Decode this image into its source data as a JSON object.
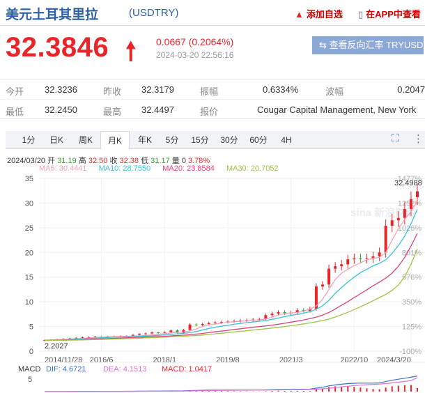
{
  "header": {
    "title": "美元土耳其里拉",
    "code": "(USDTRY)",
    "add_watch": "添加自选",
    "app_view": "在APP中查看"
  },
  "quote": {
    "price": "32.3846",
    "change": "0.0667 (0.2064%)",
    "time": "2024-03-20 22:56:16",
    "reverse_button": "查看反向汇率 TRYUSD"
  },
  "stats": {
    "open_label": "今开",
    "open": "32.3236",
    "prev_close_label": "昨收",
    "prev_close": "32.3179",
    "amplitude_label": "振幅",
    "amplitude": "0.6334%",
    "volatility_label": "波幅",
    "volatility": "0.2047",
    "low_label": "最低",
    "low": "32.2450",
    "high_label": "最高",
    "high": "32.4497",
    "quoter_label": "报价",
    "quoter": "Cougar Capital Management, New York"
  },
  "tabs": [
    "1分",
    "日K",
    "周K",
    "月K",
    "年K",
    "5分",
    "15分",
    "30分",
    "60分",
    "4H"
  ],
  "active_tab": "月K",
  "ohlc": {
    "date": "2024/03/20",
    "open_label": "开",
    "open": "31.19",
    "high_label": "高",
    "high": "32.50",
    "close_label": "收",
    "close": "32.38",
    "low_label": "低",
    "low": "31.17",
    "vol_label": "量",
    "vol": "0",
    "pct": "3.78%"
  },
  "ma": {
    "ma5": "MA5: 30.4441",
    "ma10": "MA10: 28.7550",
    "ma20": "MA20: 23.8584",
    "ma30": "MA30: 20.7052"
  },
  "colors": {
    "up": "#e8262a",
    "down": "#2ca02c",
    "ma5": "#f4a3b4",
    "ma10": "#3bbfdc",
    "ma20": "#e0417a",
    "ma30": "#9fc346",
    "dif": "#3b6fd0",
    "dea": "#e06fd6",
    "macd": "#e8262a",
    "brand_blue": "#2b5fa8"
  },
  "icons": {
    "fire": "fire-icon",
    "phone": "phone-icon",
    "arrow_up": "arrow-up-icon",
    "swap": "swap-icon",
    "fullscreen": "fullscreen-icon",
    "more": "more-vertical-icon"
  },
  "watermark": "sina 新浪财经",
  "macd": {
    "title": "MACD",
    "dif": "DIF: 4.6721",
    "dea": "DEA: 4.1513",
    "macd": "MACD: 1.0417",
    "y_tick": "5"
  },
  "chart_data": {
    "type": "candlestick",
    "period": "monthly",
    "y_ticks": [
      0,
      5,
      10,
      15,
      20,
      25,
      30,
      35
    ],
    "ylim": [
      0,
      35
    ],
    "pct_ticks": [
      "1477%",
      "1252%",
      "1026%",
      "801%",
      "576%",
      "350%",
      "125%",
      "-100%"
    ],
    "x_tick_labels": [
      "2014/11/28",
      "2016/6",
      "2018/1",
      "2019/8",
      "2021/3",
      "2022/10",
      "2024/3/20"
    ],
    "max_label": "32.4988",
    "min_label": "2.2027",
    "series": [
      {
        "name": "MA5",
        "values": [
          2.25,
          2.28,
          2.33,
          2.38,
          2.45,
          2.52,
          2.6,
          2.68,
          2.77,
          2.85,
          2.92,
          2.95,
          2.98,
          3.0,
          3.05,
          3.12,
          3.2,
          3.3,
          3.42,
          3.55,
          3.68,
          3.78,
          3.9,
          4.1,
          4.5,
          5.0,
          5.3,
          5.5,
          5.7,
          5.85,
          5.95,
          6.05,
          6.15,
          6.25,
          6.35,
          6.55,
          6.9,
          7.3,
          7.6,
          7.75,
          7.85,
          8.1,
          8.5,
          9.2,
          10.5,
          12.5,
          14.5,
          15.8,
          16.6,
          17.3,
          17.9,
          18.5,
          18.8,
          19.0,
          20.0,
          22.5,
          24.8,
          26.7,
          28.3,
          30.44
        ]
      },
      {
        "name": "MA10",
        "values": [
          2.22,
          2.24,
          2.27,
          2.3,
          2.35,
          2.41,
          2.48,
          2.55,
          2.62,
          2.7,
          2.78,
          2.84,
          2.88,
          2.92,
          2.96,
          3.0,
          3.06,
          3.12,
          3.2,
          3.3,
          3.42,
          3.52,
          3.62,
          3.76,
          4.0,
          4.3,
          4.6,
          4.85,
          5.05,
          5.25,
          5.45,
          5.62,
          5.78,
          5.92,
          6.05,
          6.22,
          6.45,
          6.72,
          7.0,
          7.25,
          7.45,
          7.7,
          8.0,
          8.5,
          9.2,
          10.3,
          11.7,
          12.9,
          14.0,
          15.0,
          15.9,
          16.6,
          17.3,
          17.8,
          18.5,
          19.8,
          21.4,
          23.3,
          25.8,
          28.76
        ]
      },
      {
        "name": "MA20",
        "values": [
          2.2,
          2.21,
          2.23,
          2.25,
          2.28,
          2.32,
          2.36,
          2.4,
          2.45,
          2.5,
          2.56,
          2.61,
          2.66,
          2.71,
          2.76,
          2.81,
          2.86,
          2.91,
          2.97,
          3.04,
          3.11,
          3.18,
          3.25,
          3.34,
          3.46,
          3.6,
          3.76,
          3.92,
          4.08,
          4.24,
          4.4,
          4.55,
          4.7,
          4.84,
          4.98,
          5.12,
          5.28,
          5.46,
          5.66,
          5.88,
          6.1,
          6.34,
          6.6,
          6.9,
          7.3,
          7.85,
          8.55,
          9.3,
          10.05,
          10.85,
          11.65,
          12.45,
          13.25,
          14.0,
          14.8,
          15.8,
          17.2,
          19.0,
          21.3,
          23.86
        ]
      },
      {
        "name": "MA30",
        "values": [
          2.2,
          2.2,
          2.21,
          2.22,
          2.24,
          2.26,
          2.29,
          2.32,
          2.35,
          2.39,
          2.43,
          2.47,
          2.51,
          2.55,
          2.6,
          2.64,
          2.69,
          2.74,
          2.79,
          2.85,
          2.91,
          2.97,
          3.03,
          3.1,
          3.18,
          3.28,
          3.39,
          3.51,
          3.63,
          3.76,
          3.89,
          4.02,
          4.15,
          4.28,
          4.41,
          4.54,
          4.68,
          4.83,
          4.99,
          5.16,
          5.34,
          5.53,
          5.73,
          5.95,
          6.2,
          6.52,
          6.92,
          7.38,
          7.88,
          8.42,
          9.0,
          9.6,
          10.22,
          10.86,
          11.5,
          12.3,
          13.4,
          15.1,
          17.6,
          20.71
        ]
      }
    ],
    "candles_close": [
      2.25,
      2.3,
      2.4,
      2.5,
      2.6,
      2.7,
      2.8,
      2.85,
      2.95,
      2.92,
      2.98,
      3.0,
      3.05,
      3.1,
      3.3,
      3.5,
      3.6,
      3.8,
      3.75,
      3.85,
      4.2,
      3.7,
      4.3,
      5.4,
      5.3,
      5.5,
      5.7,
      5.8,
      5.9,
      6.0,
      6.1,
      6.2,
      6.3,
      6.4,
      6.5,
      7.3,
      7.6,
      7.9,
      7.7,
      7.8,
      8.3,
      8.2,
      8.6,
      13.1,
      13.5,
      16.7,
      17.2,
      17.6,
      18.6,
      18.8,
      18.7,
      18.8,
      19.2,
      20.0,
      25.4,
      26.5,
      27.0,
      28.8,
      30.8,
      32.38
    ],
    "candles_open": [
      2.2,
      2.25,
      2.3,
      2.4,
      2.5,
      2.6,
      2.7,
      2.8,
      2.85,
      2.95,
      2.92,
      2.98,
      3.0,
      3.05,
      3.1,
      3.3,
      3.5,
      3.6,
      3.8,
      3.75,
      3.85,
      4.2,
      3.7,
      4.3,
      5.4,
      5.3,
      5.5,
      5.7,
      5.8,
      5.9,
      6.0,
      6.1,
      6.2,
      6.3,
      6.4,
      6.5,
      7.3,
      7.6,
      7.9,
      7.7,
      7.8,
      8.3,
      8.2,
      8.6,
      13.1,
      13.5,
      16.7,
      17.2,
      17.6,
      18.6,
      18.8,
      18.7,
      18.8,
      19.2,
      20.0,
      25.4,
      26.5,
      27.0,
      28.8,
      31.19
    ],
    "macd_dif": [
      0.02,
      0.03,
      0.04,
      0.05,
      0.06,
      0.07,
      0.08,
      0.08,
      0.09,
      0.09,
      0.09,
      0.09,
      0.09,
      0.1,
      0.11,
      0.13,
      0.14,
      0.16,
      0.17,
      0.18,
      0.21,
      0.2,
      0.23,
      0.31,
      0.36,
      0.4,
      0.43,
      0.45,
      0.46,
      0.47,
      0.47,
      0.47,
      0.47,
      0.47,
      0.47,
      0.53,
      0.58,
      0.63,
      0.65,
      0.66,
      0.7,
      0.71,
      0.73,
      1.05,
      1.3,
      1.7,
      2.0,
      2.2,
      2.4,
      2.5,
      2.55,
      2.55,
      2.55,
      2.6,
      3.0,
      3.4,
      3.7,
      4.0,
      4.3,
      4.67
    ],
    "macd_dea": [
      0.01,
      0.02,
      0.03,
      0.04,
      0.05,
      0.05,
      0.06,
      0.07,
      0.07,
      0.08,
      0.08,
      0.08,
      0.08,
      0.09,
      0.09,
      0.1,
      0.11,
      0.12,
      0.13,
      0.14,
      0.15,
      0.16,
      0.17,
      0.2,
      0.23,
      0.27,
      0.3,
      0.33,
      0.36,
      0.38,
      0.4,
      0.41,
      0.42,
      0.43,
      0.44,
      0.46,
      0.48,
      0.51,
      0.54,
      0.56,
      0.59,
      0.61,
      0.64,
      0.72,
      0.84,
      1.01,
      1.21,
      1.41,
      1.61,
      1.79,
      1.94,
      2.06,
      2.16,
      2.25,
      2.4,
      2.6,
      2.82,
      3.05,
      3.3,
      4.15
    ]
  }
}
